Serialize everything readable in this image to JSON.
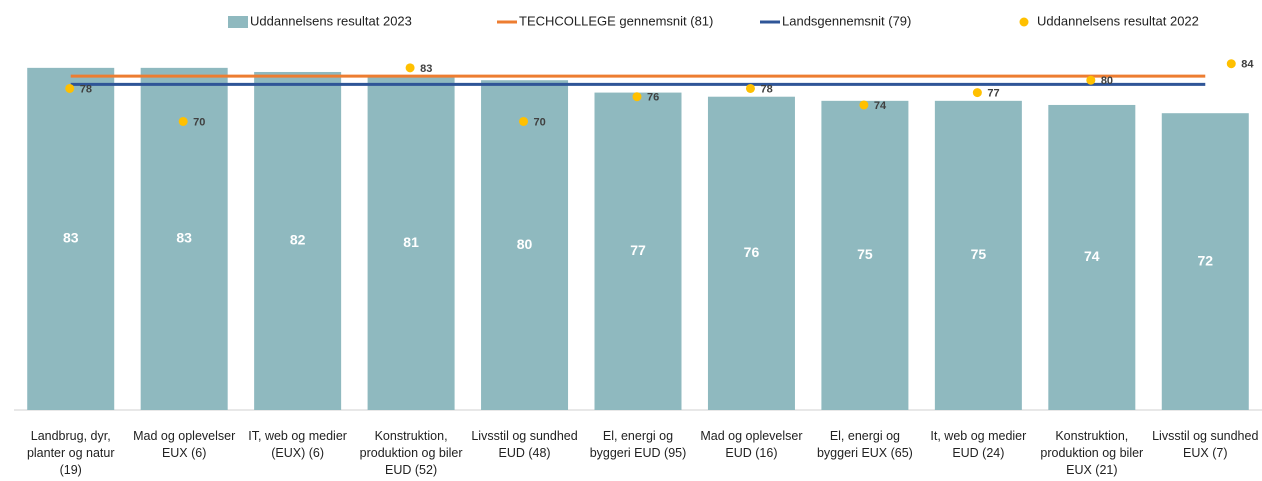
{
  "chart_data": {
    "type": "combo",
    "categories": [
      "Landbrug, dyr, planter og natur (19)",
      "Mad og oplevelser EUX (6)",
      "IT, web og medier (EUX) (6)",
      "Konstruktion, produktion og biler EUD (52)",
      "Livsstil og sundhed EUD (48)",
      "El, energi og byggeri EUD (95)",
      "Mad og oplevelser EUD (16)",
      "El, energi og byggeri EUX (65)",
      "It, web og medier EUD (24)",
      "Konstruktion, produktion og biler EUX (21)",
      "Livsstil og sundhed EUX (7)"
    ],
    "series": [
      {
        "name": "Uddannelsens resultat 2023",
        "type": "bar",
        "color": "#8fb9bf",
        "values": [
          83,
          83,
          82,
          81,
          80,
          77,
          76,
          75,
          75,
          74,
          72
        ]
      },
      {
        "name": "TECHCOLLEGE gennemsnit (81)",
        "type": "line",
        "color": "#ed7d31",
        "values": [
          81,
          81,
          81,
          81,
          81,
          81,
          81,
          81,
          81,
          81,
          81
        ]
      },
      {
        "name": "Landsgennemsnit (79)",
        "type": "line",
        "color": "#2f5597",
        "values": [
          79,
          79,
          79,
          79,
          79,
          79,
          79,
          79,
          79,
          79,
          79
        ]
      },
      {
        "name": "Uddannelsens resultat 2022",
        "type": "scatter",
        "color": "#ffc000",
        "values": [
          78,
          70,
          null,
          83,
          70,
          76,
          78,
          74,
          77,
          80,
          84
        ]
      }
    ],
    "ylim": [
      0,
      90
    ]
  }
}
